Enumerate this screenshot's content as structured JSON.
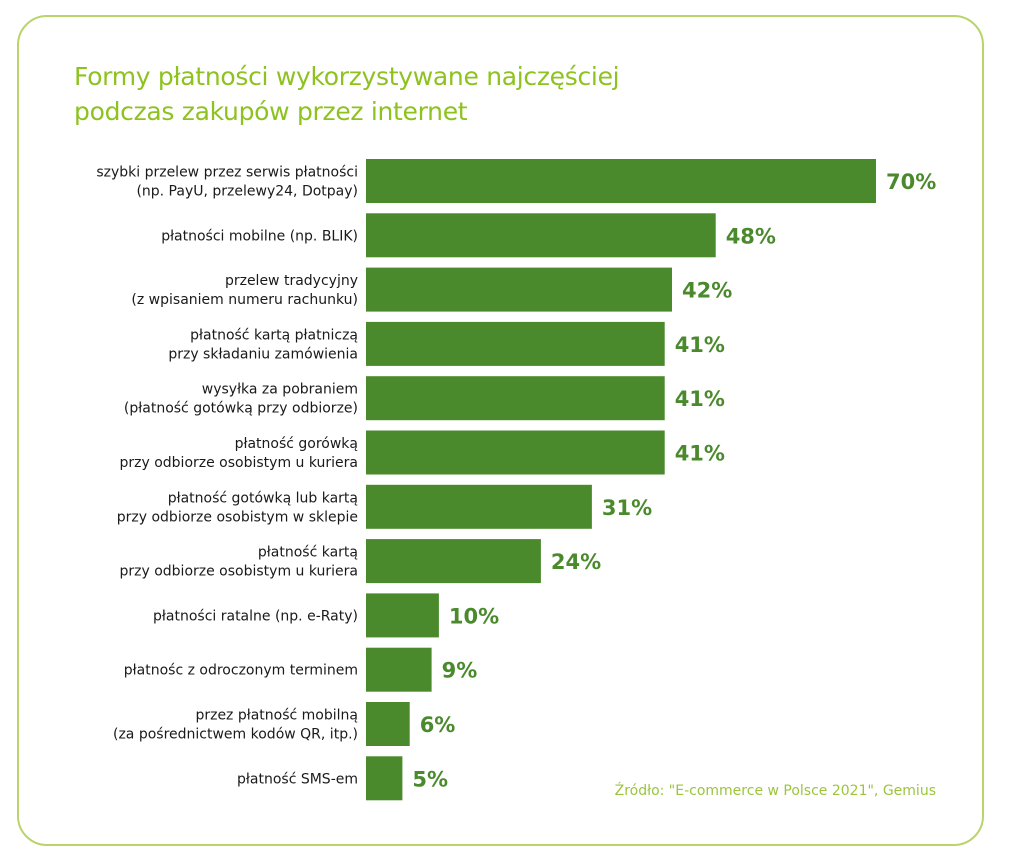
{
  "colors": {
    "frame": "#b8d46a",
    "title": "#8dc21f",
    "bar": "#4a8a2c",
    "value_label": "#4a8a2c",
    "source": "#9bc53d"
  },
  "chart_data": {
    "type": "bar",
    "orientation": "horizontal",
    "title_lines": [
      "Formy płatności wykorzystywane najczęściej",
      "podczas zakupów przez internet"
    ],
    "categories": [
      [
        "szybki przelew przez serwis płatności",
        "(np. PayU, przelewy24, Dotpay)"
      ],
      [
        "płatności mobilne (np. BLIK)"
      ],
      [
        "przelew tradycyjny",
        "(z wpisaniem numeru rachunku)"
      ],
      [
        "płatność kartą płatniczą",
        "przy składaniu zamówienia"
      ],
      [
        "wysyłka za pobraniem",
        "(płatność gotówką przy odbiorze)"
      ],
      [
        "płatność gorówką",
        "przy odbiorze osobistym u kuriera"
      ],
      [
        "płatność gotówką lub kartą",
        "przy odbiorze osobistym w sklepie"
      ],
      [
        "płatność kartą",
        "przy odbiorze osobistym u kuriera"
      ],
      [
        "płatności ratalne (np. e-Raty)"
      ],
      [
        "płatnośc z odroczonym terminem"
      ],
      [
        "przez płatność mobilną",
        "(za pośrednictwem kodów QR, itp.)"
      ],
      [
        "płatność SMS-em"
      ]
    ],
    "values": [
      70,
      48,
      42,
      41,
      41,
      41,
      31,
      24,
      10,
      9,
      6,
      5
    ],
    "value_labels": [
      "70%",
      "48%",
      "42%",
      "41%",
      "41%",
      "41%",
      "31%",
      "24%",
      "10%",
      "9%",
      "6%",
      "5%"
    ],
    "unit": "%",
    "xlim": [
      0,
      70
    ],
    "grid": false,
    "legend": "none",
    "source": "Źródło: \"E-commerce w Polsce 2021\", Gemius"
  }
}
